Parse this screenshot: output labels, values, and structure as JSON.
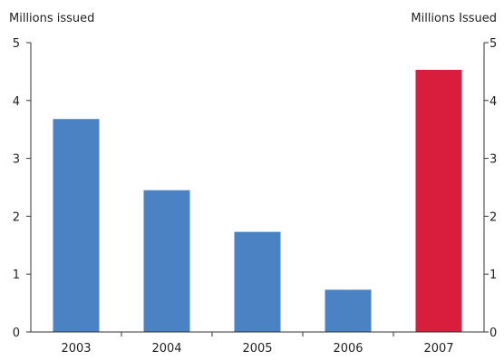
{
  "chart_data": {
    "type": "bar",
    "categories": [
      "2003",
      "2004",
      "2005",
      "2006",
      "2007"
    ],
    "values": [
      3.68,
      2.45,
      1.73,
      0.73,
      4.53
    ],
    "bar_colors": [
      "#4a82c3",
      "#4a82c3",
      "#4a82c3",
      "#4a82c3",
      "#d91d3c"
    ],
    "left_axis_label": "Millions issued",
    "right_axis_label": "Millions Issued",
    "ylim": [
      0,
      5
    ],
    "yticks": [
      "0",
      "1",
      "2",
      "3",
      "4",
      "5"
    ],
    "grid": false,
    "legend": "none"
  }
}
